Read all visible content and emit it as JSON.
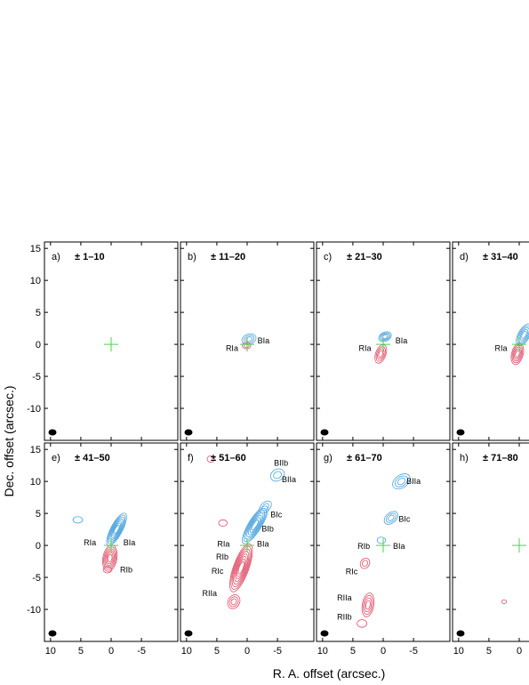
{
  "chart_data": {
    "type": "contour",
    "xlabel": "R. A. offset (arcsec.)",
    "ylabel": "Dec. offset (arcsec.)",
    "xlim": [
      11,
      -11
    ],
    "ylim": [
      -15,
      16
    ],
    "x_ticks": [
      10,
      5,
      0,
      -5
    ],
    "y_ticks": [
      15,
      10,
      5,
      0,
      -5,
      -10,
      -15
    ],
    "colors": {
      "blue": "#4aa3df",
      "red": "#e0506a",
      "cross": "#4cd24c",
      "beam": "#000000"
    },
    "panels": [
      {
        "letter": "a)",
        "range": "± 1–10",
        "blue": [],
        "red": [],
        "labels": []
      },
      {
        "letter": "b)",
        "range": "± 11–20",
        "blue": [
          {
            "x": -0.3,
            "y": 0.8,
            "a": 1.2,
            "b": 0.8,
            "r": 20,
            "n": 3
          }
        ],
        "red": [
          {
            "x": 0.1,
            "y": -0.2,
            "a": 0.7,
            "b": 0.5,
            "r": 0,
            "n": 2
          }
        ],
        "labels": [
          {
            "t": "RIa",
            "x": 2.5,
            "y": -0.6
          },
          {
            "t": "BIa",
            "x": -2.7,
            "y": 0.6
          }
        ]
      },
      {
        "letter": "c)",
        "range": "± 21–30",
        "blue": [
          {
            "x": -0.3,
            "y": 1.2,
            "a": 1.1,
            "b": 0.7,
            "r": 25,
            "n": 4
          }
        ],
        "red": [
          {
            "x": 0.4,
            "y": -1.5,
            "a": 1.6,
            "b": 0.8,
            "r": 70,
            "n": 4
          }
        ],
        "labels": [
          {
            "t": "RIa",
            "x": 3.0,
            "y": -0.6
          },
          {
            "t": "BIa",
            "x": -3.0,
            "y": 0.6
          }
        ]
      },
      {
        "letter": "d)",
        "range": "± 31–40",
        "blue": [
          {
            "x": -0.8,
            "y": 1.5,
            "a": 2.0,
            "b": 0.9,
            "r": 60,
            "n": 5
          }
        ],
        "red": [
          {
            "x": 0.3,
            "y": -1.5,
            "a": 1.8,
            "b": 0.9,
            "r": 75,
            "n": 5
          }
        ],
        "labels": [
          {
            "t": "RIa",
            "x": 3.0,
            "y": -0.6
          }
        ]
      },
      {
        "letter": "e)",
        "range": "± 41–50",
        "blue": [
          {
            "x": -0.9,
            "y": 2.5,
            "a": 3.0,
            "b": 0.9,
            "r": 62,
            "n": 7
          },
          {
            "x": 5.5,
            "y": 4.0,
            "a": 0.8,
            "b": 0.5,
            "r": 0,
            "n": 1
          }
        ],
        "red": [
          {
            "x": 0.2,
            "y": -2.0,
            "a": 2.2,
            "b": 1.1,
            "r": 80,
            "n": 6
          },
          {
            "x": 0.6,
            "y": -3.8,
            "a": 0.7,
            "b": 0.5,
            "r": 0,
            "n": 1
          }
        ],
        "labels": [
          {
            "t": "RIa",
            "x": 3.5,
            "y": 0.4
          },
          {
            "t": "BIa",
            "x": -3.0,
            "y": 0.4
          },
          {
            "t": "RIb",
            "x": -2.5,
            "y": -3.8
          }
        ]
      },
      {
        "letter": "f)",
        "range": "± 51–60",
        "blue": [
          {
            "x": -1.3,
            "y": 3.2,
            "a": 3.6,
            "b": 1.0,
            "r": 58,
            "n": 7
          },
          {
            "x": -3.0,
            "y": 6.0,
            "a": 1.2,
            "b": 0.7,
            "r": 45,
            "n": 2
          },
          {
            "x": -5.0,
            "y": 11.0,
            "a": 1.2,
            "b": 0.9,
            "r": 30,
            "n": 2
          }
        ],
        "red": [
          {
            "x": 1.0,
            "y": -3.5,
            "a": 4.2,
            "b": 1.2,
            "r": 70,
            "n": 8
          },
          {
            "x": 2.2,
            "y": -8.8,
            "a": 1.2,
            "b": 0.9,
            "r": 60,
            "n": 3
          },
          {
            "x": 4.0,
            "y": 3.5,
            "a": 0.7,
            "b": 0.5,
            "r": 0,
            "n": 1
          },
          {
            "x": 6.0,
            "y": 13.5,
            "a": 0.6,
            "b": 0.5,
            "r": 0,
            "n": 1
          }
        ],
        "labels": [
          {
            "t": "BIIb",
            "x": -5.6,
            "y": 12.9
          },
          {
            "t": "BIIa",
            "x": -6.9,
            "y": 10.3
          },
          {
            "t": "BIc",
            "x": -4.8,
            "y": 4.8
          },
          {
            "t": "BIb",
            "x": -3.4,
            "y": 2.6
          },
          {
            "t": "BIa",
            "x": -2.6,
            "y": 0.2
          },
          {
            "t": "RIa",
            "x": 3.9,
            "y": 0.2
          },
          {
            "t": "RIb",
            "x": 4.1,
            "y": -1.8
          },
          {
            "t": "RIc",
            "x": 4.9,
            "y": -4.0
          },
          {
            "t": "RIIa",
            "x": 6.2,
            "y": -7.5
          }
        ]
      },
      {
        "letter": "g)",
        "range": "± 61–70",
        "blue": [
          {
            "x": -3.0,
            "y": 10.0,
            "a": 1.6,
            "b": 1.0,
            "r": 35,
            "n": 3
          },
          {
            "x": -1.3,
            "y": 4.3,
            "a": 1.3,
            "b": 0.8,
            "r": 40,
            "n": 3
          },
          {
            "x": 0.3,
            "y": 0.8,
            "a": 0.7,
            "b": 0.5,
            "r": 0,
            "n": 1
          }
        ],
        "red": [
          {
            "x": 3.0,
            "y": -2.8,
            "a": 0.9,
            "b": 0.7,
            "r": 60,
            "n": 2
          },
          {
            "x": 2.5,
            "y": -9.3,
            "a": 2.0,
            "b": 0.9,
            "r": 80,
            "n": 4
          },
          {
            "x": 3.5,
            "y": -12.2,
            "a": 0.8,
            "b": 0.6,
            "r": 0,
            "n": 1
          }
        ],
        "labels": [
          {
            "t": "BIIa",
            "x": -5.0,
            "y": 10.0
          },
          {
            "t": "BIc",
            "x": -3.5,
            "y": 4.1
          },
          {
            "t": "RIb",
            "x": 3.2,
            "y": -0.1
          },
          {
            "t": "BIa",
            "x": -2.6,
            "y": -0.1
          },
          {
            "t": "RIc",
            "x": 5.2,
            "y": -4.1
          },
          {
            "t": "RIIa",
            "x": 6.4,
            "y": -8.2
          },
          {
            "t": "RIIb",
            "x": 6.4,
            "y": -11.2
          }
        ]
      },
      {
        "letter": "h)",
        "range": "± 71–80",
        "blue": [],
        "red": [
          {
            "x": 2.5,
            "y": -8.8,
            "a": 0.4,
            "b": 0.3,
            "r": 0,
            "n": 1
          }
        ],
        "labels": []
      }
    ]
  }
}
